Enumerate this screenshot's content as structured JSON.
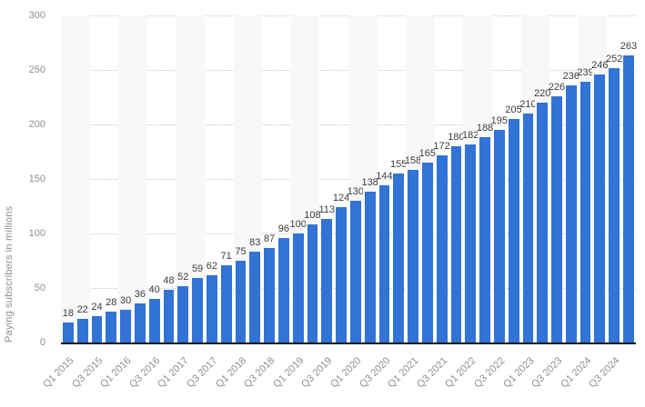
{
  "chart": {
    "ylabel": "Paying subscribers in millions"
  },
  "chart_data": {
    "type": "bar",
    "title": "",
    "xlabel": "",
    "ylabel": "Paying subscribers in millions",
    "ylim": [
      0,
      300
    ],
    "y_ticks": [
      0,
      50,
      100,
      150,
      200,
      250,
      300
    ],
    "grid": "horizontal-dotted",
    "legend": "none",
    "categories": [
      "Q1 2015",
      "Q2 2015",
      "Q3 2015",
      "Q4 2015",
      "Q1 2016",
      "Q2 2016",
      "Q3 2016",
      "Q4 2016",
      "Q1 2017",
      "Q2 2017",
      "Q3 2017",
      "Q4 2017",
      "Q1 2018",
      "Q2 2018",
      "Q3 2018",
      "Q4 2018",
      "Q1 2019",
      "Q2 2019",
      "Q3 2019",
      "Q4 2019",
      "Q1 2020",
      "Q2 2020",
      "Q3 2020",
      "Q4 2020",
      "Q1 2021",
      "Q2 2021",
      "Q3 2021",
      "Q4 2021",
      "Q1 2022",
      "Q2 2022",
      "Q3 2022",
      "Q4 2022",
      "Q1 2023",
      "Q2 2023",
      "Q3 2023",
      "Q4 2023",
      "Q1 2024",
      "Q2 2024",
      "Q3 2024",
      "Q4 2024"
    ],
    "values": [
      18,
      22,
      24,
      28,
      30,
      36,
      40,
      48,
      52,
      59,
      62,
      71,
      75,
      83,
      87,
      96,
      100,
      108,
      113,
      124,
      130,
      138,
      144,
      155,
      158,
      165,
      172,
      180,
      182,
      188,
      195,
      205,
      210,
      220,
      226,
      236,
      239,
      246,
      252,
      263
    ],
    "x_tick_labels_shown": [
      "Q1 2015",
      "Q3 2015",
      "Q1 2016",
      "Q3 2016",
      "Q1 2017",
      "Q3 2017",
      "Q1 2018",
      "Q3 2018",
      "Q1 2019",
      "Q3 2019",
      "Q1 2020",
      "Q3 2020",
      "Q1 2021",
      "Q3 2021",
      "Q1 2022",
      "Q3 2022",
      "Q1 2023",
      "Q3 2023",
      "Q1 2024",
      "Q3 2024"
    ],
    "colors": {
      "bar": "#3273d6",
      "value_label": "#3c3c3c",
      "tick_label": "#8f8f8f",
      "gridline": "#c8c8c8",
      "axis_line": "#111111",
      "stripe": "#f8f8f8",
      "background": "#ffffff"
    }
  }
}
